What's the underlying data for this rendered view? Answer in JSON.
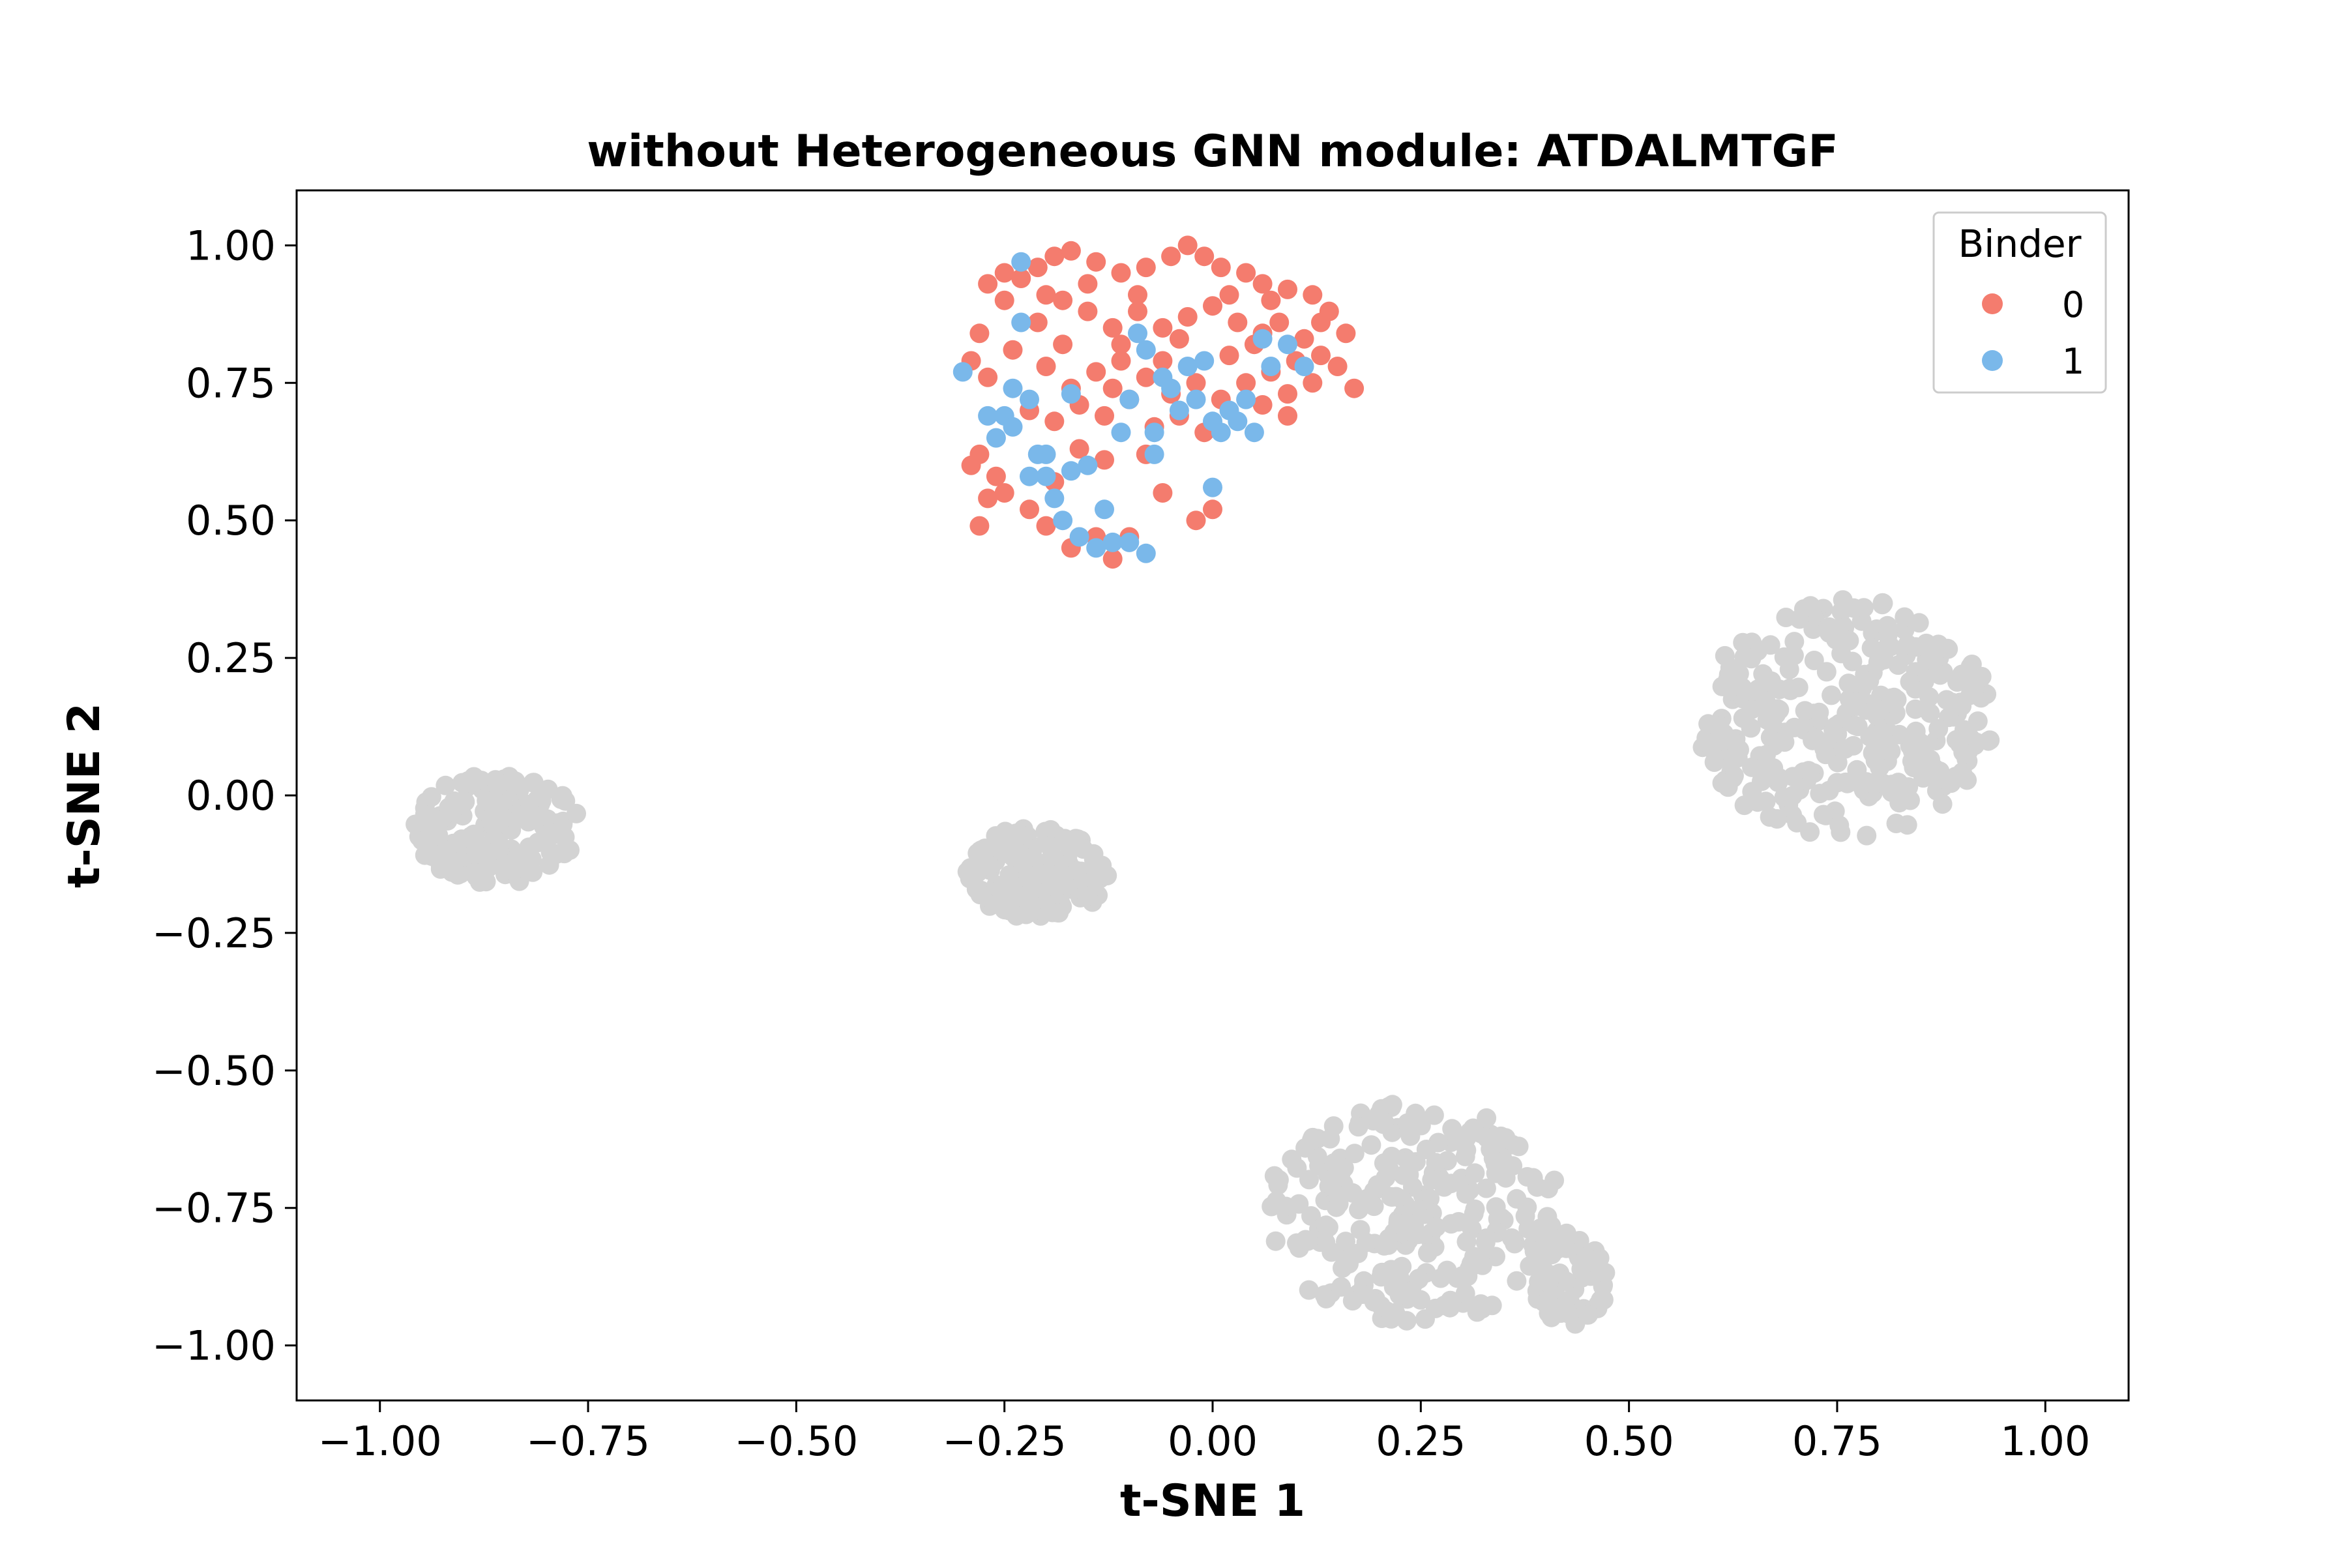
{
  "chart_data": {
    "type": "scatter",
    "title": "without Heterogeneous GNN module: ATDALMTGF",
    "xlabel": "t-SNE 1",
    "ylabel": "t-SNE 2",
    "xlim": [
      -1.1,
      1.1
    ],
    "ylim": [
      -1.1,
      1.1
    ],
    "xticks": [
      -1.0,
      -0.75,
      -0.5,
      -0.25,
      0.0,
      0.25,
      0.5,
      0.75,
      1.0
    ],
    "yticks": [
      -1.0,
      -0.75,
      -0.5,
      -0.25,
      0.0,
      0.25,
      0.5,
      0.75,
      1.0
    ],
    "xtick_labels": [
      "−1.00",
      "−0.75",
      "−0.50",
      "−0.25",
      "0.00",
      "0.25",
      "0.50",
      "0.75",
      "1.00"
    ],
    "ytick_labels": [
      "−1.00",
      "−0.75",
      "−0.50",
      "−0.25",
      "0.00",
      "0.25",
      "0.50",
      "0.75",
      "1.00"
    ],
    "grid": false,
    "legend": {
      "title": "Binder",
      "placement": "top-right",
      "entries": [
        "0",
        "1"
      ]
    },
    "series": [
      {
        "name": "0",
        "color": "#f47c6e",
        "points": [
          [
            -0.29,
            0.79
          ],
          [
            -0.28,
            0.84
          ],
          [
            -0.27,
            0.93
          ],
          [
            -0.25,
            0.95
          ],
          [
            -0.23,
            0.94
          ],
          [
            -0.21,
            0.96
          ],
          [
            -0.19,
            0.98
          ],
          [
            -0.17,
            0.99
          ],
          [
            -0.14,
            0.97
          ],
          [
            -0.11,
            0.95
          ],
          [
            -0.08,
            0.96
          ],
          [
            -0.05,
            0.98
          ],
          [
            -0.03,
            1.0
          ],
          [
            -0.01,
            0.98
          ],
          [
            0.01,
            0.96
          ],
          [
            0.04,
            0.95
          ],
          [
            0.06,
            0.93
          ],
          [
            0.09,
            0.92
          ],
          [
            0.12,
            0.91
          ],
          [
            0.14,
            0.88
          ],
          [
            0.16,
            0.84
          ],
          [
            -0.27,
            0.76
          ],
          [
            -0.24,
            0.81
          ],
          [
            -0.21,
            0.86
          ],
          [
            -0.18,
            0.9
          ],
          [
            -0.15,
            0.88
          ],
          [
            -0.12,
            0.85
          ],
          [
            -0.09,
            0.88
          ],
          [
            -0.06,
            0.85
          ],
          [
            -0.03,
            0.87
          ],
          [
            0.0,
            0.89
          ],
          [
            0.03,
            0.86
          ],
          [
            0.06,
            0.84
          ],
          [
            0.08,
            0.86
          ],
          [
            0.11,
            0.83
          ],
          [
            0.13,
            0.8
          ],
          [
            0.15,
            0.78
          ],
          [
            0.17,
            0.74
          ],
          [
            -0.2,
            0.78
          ],
          [
            -0.17,
            0.74
          ],
          [
            -0.14,
            0.77
          ],
          [
            -0.11,
            0.79
          ],
          [
            -0.08,
            0.76
          ],
          [
            -0.05,
            0.73
          ],
          [
            -0.02,
            0.75
          ],
          [
            0.01,
            0.72
          ],
          [
            0.04,
            0.75
          ],
          [
            0.07,
            0.77
          ],
          [
            0.1,
            0.79
          ],
          [
            0.12,
            0.75
          ],
          [
            0.09,
            0.73
          ],
          [
            -0.22,
            0.7
          ],
          [
            -0.19,
            0.68
          ],
          [
            -0.16,
            0.71
          ],
          [
            -0.13,
            0.69
          ],
          [
            -0.1,
            0.72
          ],
          [
            -0.07,
            0.67
          ],
          [
            -0.04,
            0.69
          ],
          [
            -0.01,
            0.66
          ],
          [
            0.09,
            0.69
          ],
          [
            0.06,
            0.71
          ],
          [
            -0.28,
            0.62
          ],
          [
            -0.26,
            0.58
          ],
          [
            -0.27,
            0.54
          ],
          [
            -0.29,
            0.6
          ],
          [
            -0.25,
            0.55
          ],
          [
            -0.22,
            0.52
          ],
          [
            -0.28,
            0.49
          ],
          [
            -0.2,
            0.49
          ],
          [
            -0.17,
            0.45
          ],
          [
            -0.14,
            0.47
          ],
          [
            -0.12,
            0.43
          ],
          [
            -0.1,
            0.47
          ],
          [
            -0.06,
            0.55
          ],
          [
            -0.02,
            0.5
          ],
          [
            0.0,
            0.52
          ],
          [
            -0.16,
            0.63
          ],
          [
            -0.13,
            0.61
          ],
          [
            -0.19,
            0.57
          ],
          [
            -0.08,
            0.62
          ],
          [
            -0.11,
            0.82
          ],
          [
            -0.04,
            0.83
          ],
          [
            0.02,
            0.8
          ],
          [
            -0.25,
            0.9
          ],
          [
            -0.2,
            0.91
          ],
          [
            -0.15,
            0.93
          ],
          [
            0.07,
            0.9
          ],
          [
            0.02,
            0.91
          ],
          [
            -0.09,
            0.91
          ],
          [
            -0.12,
            0.74
          ],
          [
            -0.18,
            0.82
          ],
          [
            0.13,
            0.86
          ],
          [
            -0.06,
            0.79
          ],
          [
            0.05,
            0.82
          ]
        ]
      },
      {
        "name": "1",
        "color": "#7ab8ea",
        "points": [
          [
            -0.3,
            0.77
          ],
          [
            -0.27,
            0.69
          ],
          [
            -0.25,
            0.69
          ],
          [
            -0.24,
            0.74
          ],
          [
            -0.23,
            0.86
          ],
          [
            -0.23,
            0.97
          ],
          [
            -0.22,
            0.72
          ],
          [
            -0.21,
            0.62
          ],
          [
            -0.2,
            0.58
          ],
          [
            -0.19,
            0.54
          ],
          [
            -0.18,
            0.5
          ],
          [
            -0.16,
            0.47
          ],
          [
            -0.14,
            0.45
          ],
          [
            -0.12,
            0.46
          ],
          [
            -0.1,
            0.46
          ],
          [
            -0.08,
            0.44
          ],
          [
            -0.17,
            0.59
          ],
          [
            -0.15,
            0.6
          ],
          [
            -0.13,
            0.52
          ],
          [
            -0.11,
            0.66
          ],
          [
            -0.1,
            0.72
          ],
          [
            -0.08,
            0.81
          ],
          [
            -0.07,
            0.66
          ],
          [
            -0.06,
            0.76
          ],
          [
            -0.05,
            0.74
          ],
          [
            -0.04,
            0.7
          ],
          [
            -0.03,
            0.78
          ],
          [
            -0.02,
            0.72
          ],
          [
            -0.01,
            0.79
          ],
          [
            0.0,
            0.68
          ],
          [
            0.01,
            0.66
          ],
          [
            0.02,
            0.7
          ],
          [
            0.03,
            0.68
          ],
          [
            0.04,
            0.72
          ],
          [
            0.05,
            0.66
          ],
          [
            0.06,
            0.83
          ],
          [
            0.07,
            0.78
          ],
          [
            0.09,
            0.82
          ],
          [
            0.11,
            0.78
          ],
          [
            -0.09,
            0.84
          ],
          [
            -0.07,
            0.62
          ],
          [
            0.0,
            0.56
          ],
          [
            -0.26,
            0.65
          ],
          [
            -0.22,
            0.58
          ],
          [
            -0.2,
            0.62
          ],
          [
            -0.24,
            0.67
          ],
          [
            -0.17,
            0.73
          ]
        ]
      },
      {
        "name": "",
        "color": "#d3d3d3",
        "clusters": [
          {
            "cx": -0.86,
            "cy": -0.06,
            "rx": 0.1,
            "ry": 0.1,
            "n": 160
          },
          {
            "cx": -0.21,
            "cy": -0.14,
            "rx": 0.085,
            "ry": 0.085,
            "n": 150
          },
          {
            "cx": 0.76,
            "cy": 0.14,
            "rx": 0.18,
            "ry": 0.22,
            "n": 320
          },
          {
            "cx": 0.24,
            "cy": -0.76,
            "rx": 0.18,
            "ry": 0.2,
            "n": 260
          },
          {
            "cx": 0.43,
            "cy": -0.88,
            "rx": 0.045,
            "ry": 0.09,
            "n": 60
          }
        ]
      }
    ]
  }
}
